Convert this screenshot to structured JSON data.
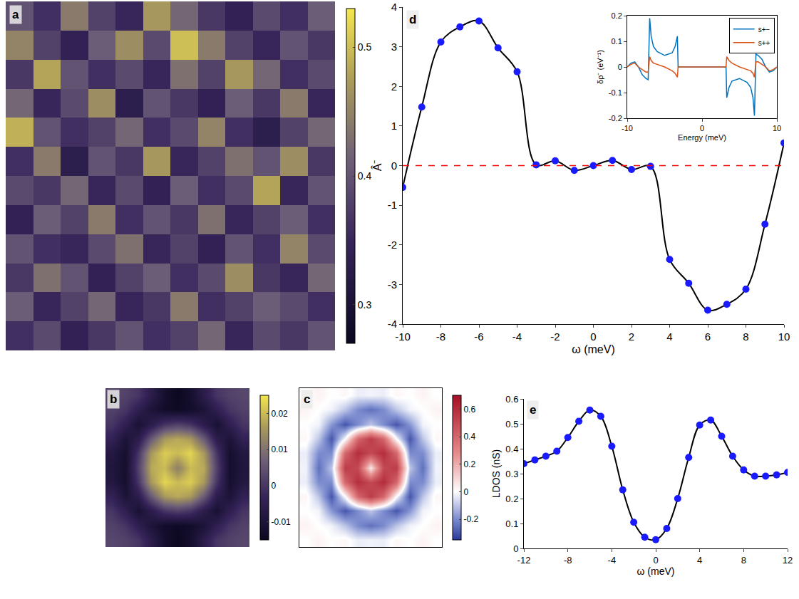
{
  "chart_data": [
    {
      "type": "heatmap",
      "title": "a",
      "tick_labels": false,
      "zlim": [
        0.27,
        0.53
      ],
      "zticks": [
        0.3,
        0.4,
        0.5
      ],
      "z": [
        [
          0.4,
          0.36,
          0.44,
          0.38,
          0.35,
          0.47,
          0.42,
          0.37,
          0.34,
          0.39,
          0.36,
          0.41
        ],
        [
          0.45,
          0.38,
          0.34,
          0.41,
          0.46,
          0.39,
          0.5,
          0.44,
          0.38,
          0.35,
          0.4,
          0.37
        ],
        [
          0.37,
          0.48,
          0.4,
          0.36,
          0.39,
          0.35,
          0.43,
          0.38,
          0.47,
          0.42,
          0.36,
          0.39
        ],
        [
          0.42,
          0.35,
          0.39,
          0.46,
          0.33,
          0.4,
          0.37,
          0.34,
          0.41,
          0.37,
          0.44,
          0.35
        ],
        [
          0.49,
          0.4,
          0.36,
          0.38,
          0.42,
          0.36,
          0.39,
          0.45,
          0.36,
          0.33,
          0.38,
          0.42
        ],
        [
          0.36,
          0.44,
          0.33,
          0.4,
          0.37,
          0.47,
          0.35,
          0.38,
          0.43,
          0.4,
          0.46,
          0.37
        ],
        [
          0.39,
          0.37,
          0.42,
          0.35,
          0.39,
          0.34,
          0.41,
          0.36,
          0.39,
          0.48,
          0.35,
          0.4
        ],
        [
          0.34,
          0.41,
          0.38,
          0.44,
          0.36,
          0.4,
          0.37,
          0.43,
          0.35,
          0.38,
          0.41,
          0.36
        ],
        [
          0.4,
          0.36,
          0.35,
          0.39,
          0.43,
          0.35,
          0.38,
          0.34,
          0.4,
          0.36,
          0.45,
          0.39
        ],
        [
          0.37,
          0.43,
          0.4,
          0.34,
          0.38,
          0.41,
          0.36,
          0.39,
          0.46,
          0.37,
          0.35,
          0.42
        ],
        [
          0.41,
          0.35,
          0.38,
          0.42,
          0.35,
          0.37,
          0.44,
          0.36,
          0.38,
          0.41,
          0.39,
          0.36
        ],
        [
          0.36,
          0.39,
          0.34,
          0.37,
          0.4,
          0.36,
          0.38,
          0.42,
          0.35,
          0.39,
          0.37,
          0.4
        ]
      ]
    },
    {
      "type": "line",
      "title": "d",
      "x_label": "ω (meV)",
      "y_label": "Â⁻",
      "xlim": [
        -10,
        10
      ],
      "xticks": [
        -10,
        -8,
        -6,
        -4,
        -2,
        0,
        2,
        4,
        6,
        8,
        10
      ],
      "ylim": [
        -4,
        4
      ],
      "yticks": [
        -4,
        -3,
        -2,
        -1,
        0,
        1,
        2,
        3,
        4
      ],
      "series": [
        {
          "x": [
            -10,
            -9,
            -8,
            -7,
            -6,
            -5,
            -4,
            -3,
            -2,
            -1,
            0,
            1,
            2,
            3,
            4,
            5,
            6,
            7,
            8,
            9,
            10
          ],
          "values": [
            -0.55,
            1.48,
            3.12,
            3.5,
            3.65,
            2.97,
            2.37,
            0.02,
            0.12,
            -0.12,
            0.0,
            0.13,
            -0.1,
            -0.02,
            -2.37,
            -2.97,
            -3.65,
            -3.5,
            -3.12,
            -1.48,
            0.57
          ],
          "color": "#1a1aff",
          "marker": "circle",
          "line_style": "solid"
        },
        {
          "x": [
            -10,
            10
          ],
          "values": [
            0,
            0
          ],
          "color": "#ff0000",
          "line_style": "dashed"
        }
      ]
    },
    {
      "type": "line",
      "x_label": "Energy (meV)",
      "y_label": "δρ⁻ (eV⁻¹)",
      "legend": "top right",
      "xlim": [
        -10,
        10
      ],
      "xticks": [
        -10,
        0,
        10
      ],
      "ylim": [
        -0.2,
        0.2
      ],
      "yticks": [
        -0.2,
        -0.1,
        0,
        0.1,
        0.2
      ],
      "x": [
        -10,
        -9.5,
        -9,
        -8.5,
        -8,
        -7.5,
        -7.2,
        -7,
        -6.8,
        -6.5,
        -6,
        -5,
        -4,
        -3.6,
        -3.3,
        -3.2,
        -3,
        -2,
        0,
        2,
        3,
        3.2,
        3.3,
        3.6,
        4,
        5,
        6,
        6.5,
        6.8,
        7,
        7.2,
        7.5,
        8,
        8.5,
        9,
        9.5,
        10
      ],
      "series": [
        {
          "name": "s+−",
          "color": "#0072bd",
          "values": [
            0.0,
            0.015,
            0.02,
            0.0,
            -0.03,
            -0.045,
            -0.05,
            0.19,
            0.12,
            0.08,
            0.06,
            0.045,
            0.055,
            0.08,
            0.12,
            0.0,
            0.0,
            0.0,
            0.0,
            0.0,
            0.0,
            0.0,
            -0.12,
            -0.08,
            -0.055,
            -0.045,
            -0.06,
            -0.08,
            -0.12,
            -0.19,
            0.05,
            0.045,
            0.03,
            0.0,
            -0.02,
            -0.015,
            0.0
          ]
        },
        {
          "name": "s++",
          "color": "#d95319",
          "values": [
            0.0,
            0.01,
            0.015,
            0.0,
            -0.01,
            -0.02,
            -0.02,
            0.04,
            0.025,
            0.015,
            0.01,
            0.0,
            -0.015,
            -0.025,
            -0.04,
            0.0,
            0.0,
            0.0,
            0.0,
            0.0,
            0.0,
            0.0,
            0.04,
            0.025,
            0.015,
            0.0,
            -0.01,
            -0.015,
            -0.025,
            -0.04,
            0.02,
            0.02,
            0.01,
            0.0,
            -0.015,
            -0.01,
            0.0
          ]
        }
      ]
    },
    {
      "type": "heatmap",
      "title": "b",
      "tick_labels": false,
      "zlim": [
        -0.015,
        0.025
      ],
      "zticks": [
        -0.01,
        0,
        0.01,
        0.02
      ],
      "z": [
        [
          0.003,
          0.002,
          0.0,
          -0.006,
          -0.012,
          -0.015,
          -0.012,
          -0.006,
          0.0,
          0.002,
          0.003
        ],
        [
          0.002,
          0.0,
          -0.005,
          -0.01,
          -0.013,
          -0.014,
          -0.013,
          -0.01,
          -0.005,
          0.0,
          0.002
        ],
        [
          0.0,
          -0.005,
          -0.011,
          -0.006,
          0.0,
          0.002,
          0.0,
          -0.006,
          -0.011,
          -0.005,
          0.0
        ],
        [
          -0.004,
          -0.01,
          -0.006,
          0.006,
          0.016,
          0.018,
          0.016,
          0.006,
          -0.006,
          -0.01,
          -0.004
        ],
        [
          -0.008,
          -0.012,
          0.0,
          0.016,
          0.022,
          0.02,
          0.023,
          0.016,
          0.0,
          -0.012,
          -0.008
        ],
        [
          -0.009,
          -0.012,
          0.002,
          0.018,
          0.02,
          0.012,
          0.02,
          0.018,
          0.002,
          -0.012,
          -0.009
        ],
        [
          -0.008,
          -0.012,
          0.0,
          0.016,
          0.023,
          0.02,
          0.022,
          0.016,
          0.0,
          -0.012,
          -0.008
        ],
        [
          -0.004,
          -0.01,
          -0.006,
          0.006,
          0.016,
          0.018,
          0.016,
          0.006,
          -0.006,
          -0.01,
          -0.004
        ],
        [
          0.0,
          -0.005,
          -0.011,
          -0.006,
          0.0,
          0.002,
          0.0,
          -0.006,
          -0.011,
          -0.005,
          0.0
        ],
        [
          0.002,
          0.0,
          -0.005,
          -0.01,
          -0.013,
          -0.014,
          -0.013,
          -0.01,
          -0.005,
          0.0,
          0.002
        ],
        [
          0.003,
          0.002,
          0.0,
          -0.006,
          -0.012,
          -0.015,
          -0.012,
          -0.006,
          0.0,
          0.002,
          0.003
        ]
      ]
    },
    {
      "type": "heatmap",
      "title": "c",
      "tick_labels": false,
      "zlim": [
        -0.35,
        0.7
      ],
      "zticks": [
        -0.2,
        0,
        0.2,
        0.4,
        0.6
      ],
      "z": [
        [
          0.0,
          0.03,
          0.0,
          0.02,
          -0.03,
          -0.02,
          -0.03,
          0.02,
          0.0,
          0.03,
          0.0
        ],
        [
          0.03,
          0.0,
          -0.02,
          -0.1,
          -0.2,
          -0.25,
          -0.2,
          -0.1,
          -0.02,
          0.0,
          0.03
        ],
        [
          0.0,
          -0.02,
          -0.18,
          -0.3,
          -0.2,
          -0.1,
          -0.2,
          -0.3,
          -0.18,
          -0.02,
          0.0
        ],
        [
          0.02,
          -0.1,
          -0.3,
          0.0,
          0.4,
          0.55,
          0.4,
          0.0,
          -0.3,
          -0.1,
          0.02
        ],
        [
          -0.03,
          -0.2,
          -0.2,
          0.4,
          0.6,
          0.5,
          0.6,
          0.4,
          -0.2,
          -0.2,
          -0.03
        ],
        [
          -0.02,
          -0.25,
          -0.1,
          0.55,
          0.5,
          0.05,
          0.5,
          0.55,
          -0.1,
          -0.25,
          -0.02
        ],
        [
          -0.03,
          -0.2,
          -0.2,
          0.4,
          0.6,
          0.5,
          0.6,
          0.4,
          -0.2,
          -0.2,
          -0.03
        ],
        [
          0.02,
          -0.1,
          -0.3,
          0.0,
          0.4,
          0.55,
          0.4,
          0.0,
          -0.3,
          -0.1,
          0.02
        ],
        [
          0.0,
          -0.02,
          -0.18,
          -0.3,
          -0.2,
          -0.1,
          -0.2,
          -0.3,
          -0.18,
          -0.02,
          0.0
        ],
        [
          0.03,
          0.0,
          -0.02,
          -0.1,
          -0.2,
          -0.25,
          -0.2,
          -0.1,
          -0.02,
          0.0,
          0.03
        ],
        [
          0.0,
          0.03,
          0.0,
          0.02,
          -0.03,
          -0.02,
          -0.03,
          0.02,
          0.0,
          0.03,
          0.0
        ]
      ]
    },
    {
      "type": "line",
      "title": "e",
      "x_label": "ω (meV)",
      "y_label": "LDOS (nS)",
      "xlim": [
        -12,
        12
      ],
      "xticks": [
        -12,
        -8,
        -4,
        0,
        4,
        8,
        12
      ],
      "ylim": [
        0,
        0.6
      ],
      "yticks": [
        0,
        0.1,
        0.2,
        0.3,
        0.4,
        0.5,
        0.6
      ],
      "series": [
        {
          "x": [
            -12,
            -11,
            -10,
            -9,
            -8,
            -7,
            -6,
            -5,
            -4,
            -3,
            -2,
            -1,
            0,
            1,
            2,
            3,
            4,
            5,
            6,
            7,
            8,
            9,
            10,
            11,
            12
          ],
          "values": [
            0.34,
            0.355,
            0.37,
            0.39,
            0.445,
            0.51,
            0.555,
            0.53,
            0.41,
            0.235,
            0.105,
            0.045,
            0.035,
            0.08,
            0.2,
            0.365,
            0.495,
            0.515,
            0.45,
            0.37,
            0.315,
            0.29,
            0.29,
            0.295,
            0.305
          ],
          "color": "#1a1aff",
          "marker": "circle",
          "line_style": "solid"
        }
      ]
    }
  ]
}
